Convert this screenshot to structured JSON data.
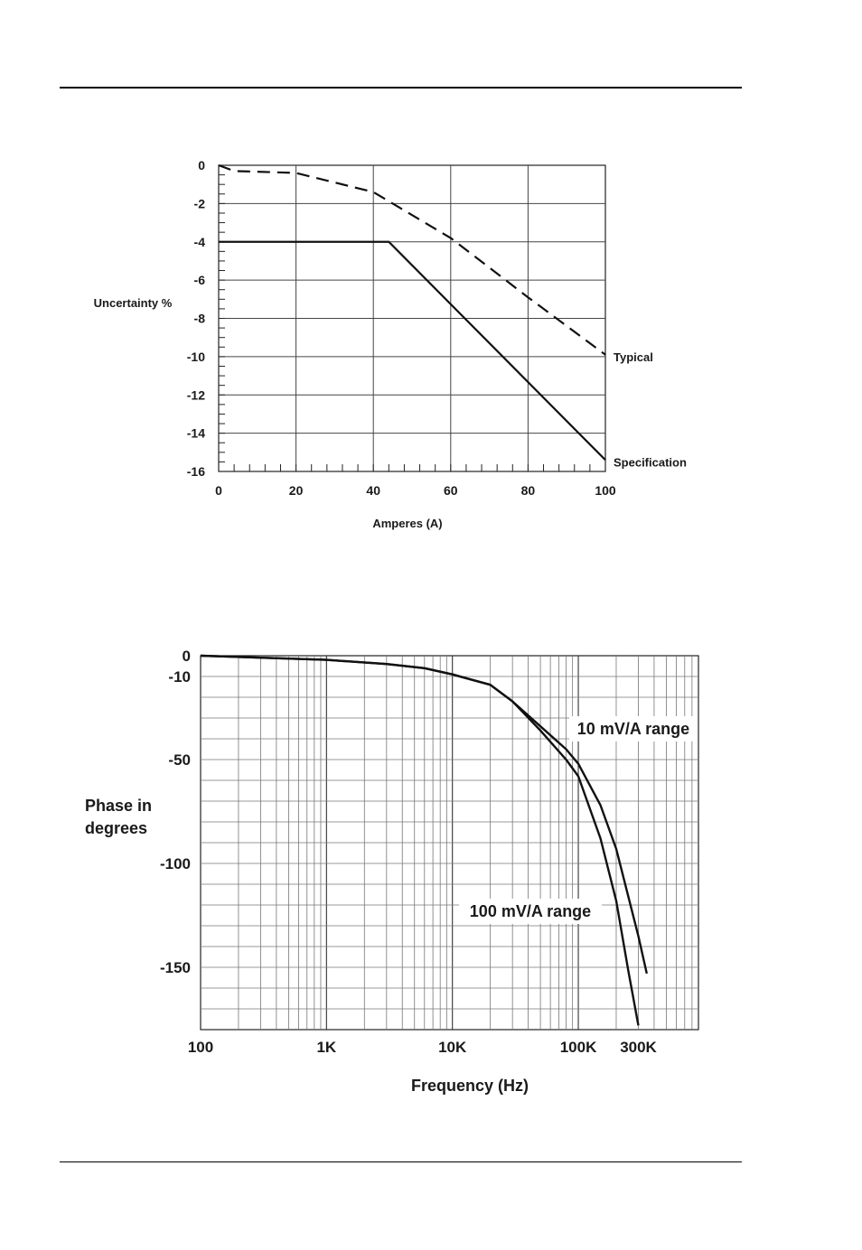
{
  "chart_data": [
    {
      "type": "line",
      "title": "",
      "xlabel": "Amperes (A)",
      "ylabel": "Uncertainty %",
      "xlim": [
        0,
        100
      ],
      "ylim": [
        -16,
        0
      ],
      "x_ticks": [
        "0",
        "20",
        "40",
        "60",
        "80",
        "100"
      ],
      "y_ticks": [
        "0",
        "-2",
        "-4",
        "-6",
        "-8",
        "-10",
        "-12",
        "-14",
        "-16"
      ],
      "grid": true,
      "series": [
        {
          "name": "Typical",
          "style": "dashed",
          "x": [
            0,
            4,
            20,
            40,
            60,
            80,
            100
          ],
          "y": [
            0,
            -0.3,
            -0.4,
            -1.4,
            -3.8,
            -6.9,
            -9.9
          ]
        },
        {
          "name": "Specification",
          "style": "solid",
          "x": [
            0,
            44,
            100
          ],
          "y": [
            -4,
            -4,
            -15.4
          ]
        }
      ]
    },
    {
      "type": "line",
      "title": "",
      "xlabel": "Frequency (Hz)",
      "ylabel": "Phase in degrees",
      "x_scale": "log",
      "xlim": [
        100,
        900000
      ],
      "ylim": [
        -180,
        0
      ],
      "x_ticks": [
        "100",
        "1K",
        "10K",
        "100K",
        "300K"
      ],
      "y_ticks": [
        "0",
        "-10",
        "-50",
        "-100",
        "-150"
      ],
      "grid": true,
      "series": [
        {
          "name": "10 mV/A range",
          "x": [
            100,
            1000,
            3000,
            6000,
            10000,
            20000,
            30000,
            50000,
            80000,
            100000,
            150000,
            200000,
            300000,
            350000
          ],
          "y": [
            0,
            -2,
            -4,
            -6,
            -9,
            -14,
            -22,
            -34,
            -45,
            -52,
            -72,
            -93,
            -135,
            -153
          ]
        },
        {
          "name": "100 mV/A range",
          "x": [
            100,
            1000,
            3000,
            6000,
            10000,
            20000,
            30000,
            50000,
            80000,
            100000,
            150000,
            200000,
            250000,
            300000
          ],
          "y": [
            0,
            -2,
            -4,
            -6,
            -9,
            -14,
            -22,
            -36,
            -50,
            -58,
            -88,
            -118,
            -152,
            -178
          ]
        }
      ]
    }
  ]
}
